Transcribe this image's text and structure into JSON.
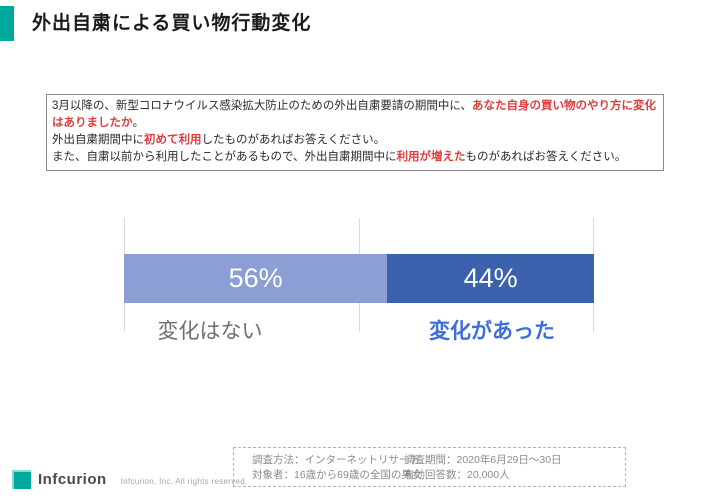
{
  "slide": {
    "title": "外出自粛による買い物行動変化"
  },
  "question_box": {
    "line1": {
      "black": "3月以降の、新型コロナウイルス感染拡大防止のための外出自粛要請の期間中に、",
      "red": "あなた自身の買い物のやり方に変化"
    },
    "line2": {
      "red": "はありましたか",
      "black": "。"
    },
    "line3": {
      "pre": "外出自粛期間中に",
      "red": "初めて利用",
      "post": "したものがあればお答えください。"
    },
    "line4": {
      "pre": "また、自粛以前から利用したことがあるもので、外出自粛期間中に",
      "red": "利用が増えた",
      "post": "ものがあればお答えください。"
    }
  },
  "chart_data": {
    "type": "bar",
    "subtype": "horizontal-stacked-100percent",
    "categories": [
      "変化はない",
      "変化があった"
    ],
    "values": [
      56,
      44
    ],
    "value_labels": [
      "56%",
      "44%"
    ],
    "xlim": [
      0,
      100
    ],
    "gridlines_at_percent": [
      0,
      50,
      100
    ],
    "series_colors": [
      "#8C9FD4",
      "#3B62AC"
    ],
    "category_label_colors": [
      "#6F6F6F",
      "#3D6ED9"
    ],
    "legend_position": "none",
    "grid": true
  },
  "survey_box": {
    "method": "調査方法：インターネットリサーチ",
    "period": "調査期間：2020年6月29日～30日",
    "subjects": "対象者：16歳から69歳の全国の男女",
    "responses": "有効回答数：20,000人"
  },
  "footer": {
    "logo_text": "Infcurion",
    "copyright": "Infcurion, Inc.  All rights reserved."
  },
  "colors": {
    "accent_teal": "#00A99D",
    "question_red": "#E03C3C",
    "bar_light": "#8C9FD4",
    "bar_dark": "#3B62AC",
    "gridline": "#D9D9D9"
  }
}
